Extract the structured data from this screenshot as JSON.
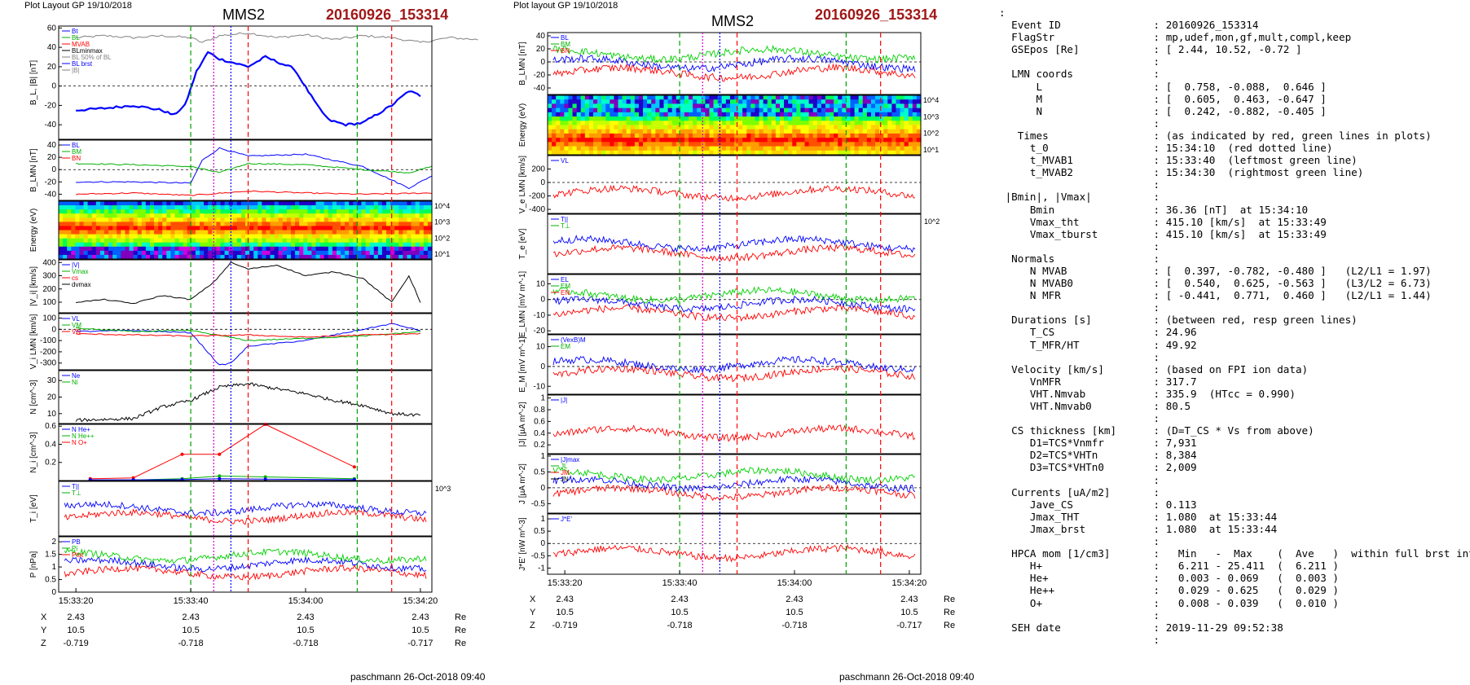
{
  "left_figure": {
    "header": "Plot Layout GP 19/10/2018",
    "spacecraft": "MMS2",
    "event": "20160926_153314",
    "signature": "paschmann 26-Oct-2018 09:40",
    "time_ticks": [
      "15:33:20",
      "15:33:40",
      "15:34:00",
      "15:34:20"
    ],
    "position_rows": [
      {
        "label": "X",
        "values": [
          "2.43",
          "2.43",
          "2.43",
          "2.43"
        ],
        "unit": "Re"
      },
      {
        "label": "Y",
        "values": [
          "10.5",
          "10.5",
          "10.5",
          "10.5"
        ],
        "unit": "Re"
      },
      {
        "label": "Z",
        "values": [
          "-0.719",
          "-0.718",
          "-0.718",
          "-0.717"
        ],
        "unit": "Re"
      }
    ]
  },
  "right_figure": {
    "header": "Plot layout GP 19/10/2018",
    "spacecraft": "MMS2",
    "event": "20160926_153314",
    "signature": "paschmann 26-Oct-2018 09:40",
    "time_ticks": [
      "15:33:20",
      "15:33:40",
      "15:34:00",
      "15:34:20"
    ],
    "position_rows": [
      {
        "label": "X",
        "values": [
          "2.43",
          "2.43",
          "2.43",
          "2.43"
        ],
        "unit": "Re"
      },
      {
        "label": "Y",
        "values": [
          "10.5",
          "10.5",
          "10.5",
          "10.5"
        ],
        "unit": "Re"
      },
      {
        "label": "Z",
        "values": [
          "-0.719",
          "-0.718",
          "-0.718",
          "-0.717"
        ],
        "unit": "Re"
      }
    ]
  },
  "chart_data": [
    {
      "type": "line",
      "figure": "left",
      "panel": 0,
      "ylabel": "B_L, |B| [nT]",
      "yticks": [
        -40,
        -20,
        0,
        20,
        40,
        60
      ],
      "ylim": [
        -55,
        62
      ],
      "legend": [
        "Bt",
        "BL",
        "MVAB",
        "BLminmax",
        "BL 50% of BL",
        "BL brst",
        "|B|"
      ],
      "series": [
        {
          "name": "|B|",
          "color": "#808080",
          "x": [
            0,
            5,
            10,
            15,
            20,
            22,
            25,
            30,
            35,
            40,
            45,
            50,
            55,
            60,
            65,
            70
          ],
          "y": [
            50,
            52,
            50,
            52,
            50,
            45,
            52,
            55,
            50,
            53,
            48,
            52,
            50,
            45,
            50,
            48
          ]
        },
        {
          "name": "BL",
          "color": "#0000ff",
          "x": [
            0,
            5,
            10,
            15,
            17,
            19,
            21,
            23,
            25,
            30,
            33,
            38,
            42,
            44,
            47,
            50,
            55,
            58,
            60
          ],
          "y": [
            -25,
            -23,
            -20,
            -25,
            -30,
            -20,
            15,
            35,
            28,
            20,
            30,
            18,
            -20,
            -35,
            -40,
            -38,
            -20,
            -5,
            -10
          ]
        }
      ]
    },
    {
      "type": "line",
      "figure": "left",
      "panel": 1,
      "ylabel": "B_LMN [nT]",
      "yticks": [
        -40,
        -20,
        0,
        20,
        40
      ],
      "ylim": [
        -50,
        48
      ],
      "legend": [
        "BL",
        "BM",
        "BN"
      ],
      "series": [
        {
          "name": "BL",
          "color": "#0000ff",
          "x": [
            0,
            10,
            20,
            22,
            25,
            30,
            40,
            50,
            58,
            62
          ],
          "y": [
            -20,
            -20,
            -22,
            15,
            35,
            22,
            25,
            5,
            -30,
            -10
          ]
        },
        {
          "name": "BM",
          "color": "#00b000",
          "x": [
            0,
            10,
            20,
            25,
            30,
            40,
            50,
            58,
            62
          ],
          "y": [
            10,
            8,
            5,
            -5,
            10,
            8,
            0,
            -5,
            5
          ]
        },
        {
          "name": "BN",
          "color": "#ff0000",
          "x": [
            0,
            10,
            20,
            30,
            40,
            50,
            62
          ],
          "y": [
            -40,
            -38,
            -42,
            -35,
            -38,
            -40,
            -38
          ]
        }
      ]
    },
    {
      "type": "heatmap",
      "figure": "left",
      "panel": 2,
      "ylabel": "Energy (eV)",
      "ytick_labels": [
        "10^1",
        "10^2",
        "10^3",
        "10^4"
      ]
    },
    {
      "type": "line",
      "figure": "left",
      "panel": 3,
      "ylabel": "|V_i| [km/s]",
      "yticks": [
        100,
        200,
        300,
        400
      ],
      "ylim": [
        20,
        420
      ],
      "legend": [
        "|V|",
        "Vmax",
        "cs",
        "dvmax"
      ],
      "series": [
        {
          "name": "|V|",
          "color": "#000000",
          "x": [
            0,
            5,
            10,
            15,
            20,
            24,
            27,
            30,
            35,
            40,
            45,
            50,
            55,
            58,
            60
          ],
          "y": [
            100,
            120,
            90,
            150,
            120,
            250,
            400,
            350,
            380,
            300,
            330,
            280,
            100,
            300,
            100
          ]
        }
      ]
    },
    {
      "type": "line",
      "figure": "left",
      "panel": 4,
      "ylabel": "V_i LMN [km/s]",
      "yticks": [
        100,
        0,
        -100,
        -200,
        -300
      ],
      "ylim": [
        -360,
        140
      ],
      "legend": [
        "VL",
        "VM",
        "VN"
      ],
      "series": [
        {
          "name": "VL",
          "color": "#0000ff",
          "x": [
            0,
            10,
            20,
            25,
            27,
            30,
            40,
            50,
            55,
            60
          ],
          "y": [
            -20,
            -10,
            -30,
            -320,
            -300,
            -150,
            -100,
            0,
            50,
            -10
          ]
        },
        {
          "name": "VM",
          "color": "#00b000",
          "x": [
            0,
            10,
            20,
            30,
            40,
            50,
            60
          ],
          "y": [
            10,
            -20,
            -10,
            -100,
            -80,
            -60,
            -20
          ]
        },
        {
          "name": "VN",
          "color": "#ff0000",
          "x": [
            0,
            10,
            20,
            30,
            40,
            50,
            60
          ],
          "y": [
            -40,
            -50,
            -60,
            -50,
            -70,
            -50,
            -40
          ]
        }
      ]
    },
    {
      "type": "line",
      "figure": "left",
      "panel": 5,
      "ylabel": "N [cm^-3]",
      "yticks": [
        10,
        20,
        30
      ],
      "ylim": [
        4,
        36
      ],
      "legend": [
        "Ne",
        "Ni"
      ],
      "series": [
        {
          "name": "Ni",
          "color": "#000000",
          "x": [
            0,
            10,
            15,
            20,
            25,
            30,
            35,
            40,
            45,
            50,
            55,
            60
          ],
          "y": [
            6,
            7,
            14,
            18,
            26,
            28,
            25,
            22,
            18,
            15,
            10,
            9
          ]
        }
      ]
    },
    {
      "type": "line",
      "figure": "left",
      "panel": 6,
      "ylabel": "N_i [cm^-3]",
      "yticks": [
        0.2,
        0.4,
        0.6
      ],
      "ylim": [
        0,
        0.62
      ],
      "legend": [
        "N He+",
        "N He++",
        "N O+"
      ],
      "series": [
        {
          "name": "N He++",
          "color": "#ff0000",
          "x": [
            2.5,
            10,
            18.5,
            25,
            33,
            48.5
          ],
          "y": [
            0.02,
            0.03,
            0.29,
            0.29,
            0.62,
            0.15
          ]
        },
        {
          "name": "N He+",
          "color": "#00b000",
          "x": [
            2.5,
            10,
            18.5,
            25,
            33,
            48.5
          ],
          "y": [
            0.005,
            0.006,
            0.02,
            0.05,
            0.04,
            0.02
          ]
        },
        {
          "name": "N O+",
          "color": "#0000ff",
          "x": [
            2.5,
            10,
            18.5,
            25,
            33,
            48.5
          ],
          "y": [
            0.008,
            0.008,
            0.01,
            0.02,
            0.015,
            0.01
          ]
        }
      ]
    },
    {
      "type": "line",
      "figure": "left",
      "panel": 7,
      "ylabel": "T_i [eV]",
      "ytick_labels": [
        "10^3"
      ],
      "legend": [
        "T||",
        "T⊥"
      ]
    },
    {
      "type": "line",
      "figure": "left",
      "panel": 8,
      "ylabel": "P [nPa]",
      "yticks": [
        0.0,
        0.5,
        1.0,
        1.5,
        2.0
      ],
      "ylim": [
        0,
        2.2
      ],
      "legend": [
        "PB",
        "Pi",
        "Ptot"
      ]
    },
    {
      "type": "line",
      "figure": "right",
      "panel": 0,
      "ylabel": "B_LMN [nT]",
      "yticks": [
        -40,
        -20,
        0,
        20,
        40
      ],
      "ylim": [
        -50,
        45
      ],
      "legend": [
        "BL",
        "BM",
        "BN"
      ]
    },
    {
      "type": "heatmap",
      "figure": "right",
      "panel": 1,
      "ylabel": "Energy (eV)",
      "ytick_labels": [
        "10^1",
        "10^2",
        "10^3",
        "10^4"
      ]
    },
    {
      "type": "line",
      "figure": "right",
      "panel": 2,
      "ylabel": "V_e LMN [km/s]",
      "yticks": [
        200,
        0,
        -200,
        -400
      ],
      "ylim": [
        -460,
        400
      ],
      "ytick_labels_extra": [
        "400"
      ],
      "legend": [
        "VL"
      ]
    },
    {
      "type": "line",
      "figure": "right",
      "panel": 3,
      "ylabel": "T_e [eV]",
      "ytick_labels": [
        "10^2"
      ],
      "legend": [
        "T||",
        "T⊥"
      ]
    },
    {
      "type": "line",
      "figure": "right",
      "panel": 4,
      "ylabel": "E_LMN [mV m^-1]",
      "yticks": [
        10,
        0,
        -10,
        -20
      ],
      "ylim": [
        -22,
        16
      ],
      "legend": [
        "EL",
        "EM",
        "EN"
      ]
    },
    {
      "type": "line",
      "figure": "right",
      "panel": 5,
      "ylabel": "E_M [mV m^-1]",
      "yticks": [
        10,
        0,
        -10
      ],
      "ylim": [
        -14,
        16
      ],
      "legend": [
        "(VexB)M",
        "EM"
      ]
    },
    {
      "type": "line",
      "figure": "right",
      "panel": 6,
      "ylabel": "|J| [µA m^-2]",
      "yticks": [
        0.2,
        0.4,
        0.6,
        0.8,
        1.0
      ],
      "ylim": [
        0.05,
        1.05
      ],
      "legend": [
        "|J|"
      ]
    },
    {
      "type": "line",
      "figure": "right",
      "panel": 7,
      "ylabel": "J [µA m^-2]",
      "yticks": [
        1.0,
        0.5,
        0.0,
        -0.5
      ],
      "ylim": [
        -0.8,
        1.05
      ],
      "legend": [
        "|J|max",
        "JL",
        "JM",
        "JN"
      ]
    },
    {
      "type": "line",
      "figure": "right",
      "panel": 8,
      "ylabel": "J*E' [nW m^-3]",
      "yticks": [
        1.0,
        0.5,
        0.0,
        -0.5,
        -1.0
      ],
      "ylim": [
        -1.25,
        1.2
      ],
      "legend": [
        "J*E'"
      ]
    }
  ],
  "info": {
    "lines": [
      ":",
      "  Event ID               : 20160926_153314",
      "  FlagStr                : mp,udef,mon,gf,mult,compl,keep",
      "  GSEpos [Re]            : [ 2.44, 10.52, -0.72 ]",
      "                         :",
      "  LMN coords             :",
      "      L                  : [  0.758, -0.088,  0.646 ]",
      "      M                  : [  0.605,  0.463, -0.647 ]",
      "      N                  : [  0.242, -0.882, -0.405 ]",
      "                         :",
      "   Times                 : (as indicated by red, green lines in plots)",
      "     t_0                 : 15:34:10  (red dotted line)",
      "     t_MVAB1             : 15:33:40  (leftmost green line)",
      "     t_MVAB2             : 15:34:30  (rightmost green line)",
      "                         :",
      " |Bmin|, |Vmax|          :",
      "     Bmin                : 36.36 [nT]  at 15:34:10",
      "     Vmax_tht            : 415.10 [km/s]  at 15:33:49",
      "     Vmax_tburst         : 415.10 [km/s]  at 15:33:49",
      "                         :",
      "  Normals                :",
      "     N MVAB              : [  0.397, -0.782, -0.480 ]   (L2/L1 = 1.97)",
      "     N MVAB0             : [  0.540,  0.625, -0.563 ]   (L3/L2 = 6.73)",
      "     N MFR               : [ -0.441,  0.771,  0.460 ]   (L2/L1 = 1.44)",
      "                         :",
      "  Durations [s]          : (between red, resp green lines)",
      "     T_CS                : 24.96",
      "     T_MFR/HT            : 49.92",
      "                         :",
      "  Velocity [km/s]        : (based on FPI ion data)",
      "     VnMFR               : 317.7",
      "     VHT.Nmvab           : 335.9  (HTcc = 0.990)",
      "     VHT.Nmvab0          : 80.5",
      "                         :",
      "  CS thickness [km]      : (D=T_CS * Vs from above)",
      "     D1=TCS*Vnmfr        : 7,931",
      "     D2=TCS*VHTn         : 8,384",
      "     D3=TCS*VHTn0        : 2,009",
      "                         :",
      "  Currents [uA/m2]       :",
      "     Jave_CS             : 0.113",
      "     Jmax_THT            : 1.080  at 15:33:44",
      "     Jmax_brst           : 1.080  at 15:33:44",
      "                         :",
      "  HPCA mom [1/cm3]       :   Min   -  Max    (  Ave   )  within full brst int",
      "     H+                  :   6.211 - 25.411  (  6.211 )",
      "     He+                 :   0.003 - 0.069   (  0.003 )",
      "     He++                :   0.029 - 0.625   (  0.029 )",
      "     O+                  :   0.008 - 0.039   (  0.010 )",
      "                         :",
      "  SEH date               : 2019-11-29 09:52:38",
      "                         :"
    ]
  }
}
